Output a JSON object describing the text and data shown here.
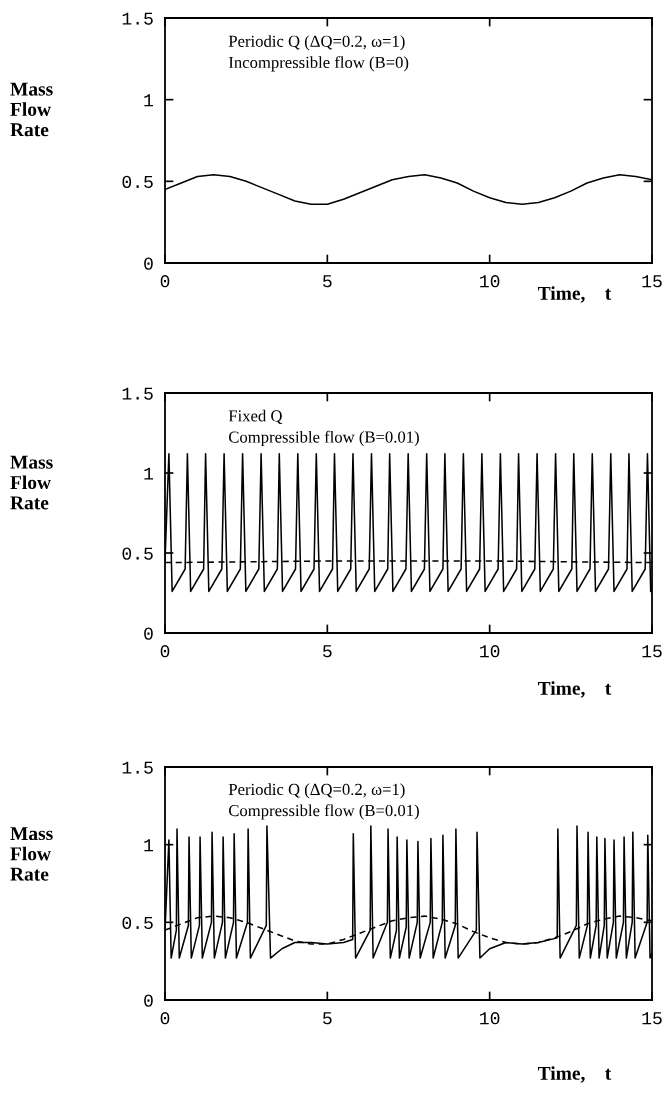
{
  "chart_data": [
    {
      "type": "line",
      "xlabel": "Time,    t",
      "ylabel": "Mass\nFlow\nRate",
      "annotations": [
        "Periodic Q (ΔQ=0.2, ω=1)\nIncompressible flow (B=0)"
      ],
      "xlim": [
        0,
        15
      ],
      "ylim": [
        0,
        1.5
      ],
      "xticks": [
        0,
        5,
        10,
        15
      ],
      "yticks": [
        0,
        0.5,
        1,
        1.5
      ],
      "grid": false,
      "series": [
        {
          "color": "#000000",
          "line_style": "solid",
          "x": [
            0,
            0.5,
            1,
            1.5,
            2,
            2.5,
            3,
            3.5,
            4,
            4.5,
            5,
            5.5,
            6,
            6.5,
            7,
            7.5,
            8,
            8.5,
            9,
            9.5,
            10,
            10.5,
            11,
            11.5,
            12,
            12.5,
            13,
            13.5,
            14,
            14.5,
            15
          ],
          "values": [
            0.45,
            0.49,
            0.53,
            0.54,
            0.53,
            0.5,
            0.46,
            0.42,
            0.38,
            0.36,
            0.36,
            0.39,
            0.43,
            0.47,
            0.51,
            0.53,
            0.54,
            0.52,
            0.49,
            0.44,
            0.4,
            0.37,
            0.36,
            0.37,
            0.4,
            0.44,
            0.49,
            0.52,
            0.54,
            0.53,
            0.51
          ]
        }
      ]
    },
    {
      "type": "line",
      "xlabel": "Time,    t",
      "ylabel": "Mass\nFlow\nRate",
      "annotations": [
        "Fixed Q\nCompressible flow (B=0.01)"
      ],
      "xlim": [
        0,
        15
      ],
      "ylim": [
        0,
        1.5
      ],
      "xticks": [
        0,
        5,
        10,
        15
      ],
      "yticks": [
        0,
        0.5,
        1,
        1.5
      ],
      "grid": false,
      "series": [
        {
          "color": "#000000",
          "line_style": "solid",
          "x": [
            0,
            0.12,
            0.22,
            0.62,
            0.69,
            0.79,
            1.19,
            1.25,
            1.35,
            1.75,
            1.82,
            1.92,
            2.32,
            2.39,
            2.49,
            2.89,
            2.96,
            3.06,
            3.46,
            3.52,
            3.62,
            4.02,
            4.09,
            4.19,
            4.59,
            4.66,
            4.76,
            5.16,
            5.22,
            5.32,
            5.72,
            5.79,
            5.89,
            6.29,
            6.36,
            6.46,
            6.86,
            6.92,
            7.02,
            7.42,
            7.49,
            7.59,
            7.99,
            8.06,
            8.16,
            8.56,
            8.62,
            8.72,
            9.12,
            9.19,
            9.29,
            9.69,
            9.76,
            9.86,
            10.26,
            10.33,
            10.43,
            10.83,
            10.89,
            10.99,
            11.39,
            11.46,
            11.56,
            11.96,
            12.03,
            12.13,
            12.53,
            12.59,
            12.69,
            13.09,
            13.16,
            13.26,
            13.66,
            13.73,
            13.83,
            14.23,
            14.29,
            14.39,
            14.79,
            14.86,
            14.96,
            15
          ],
          "values": [
            0.45,
            1.12,
            0.26,
            0.4,
            1.12,
            0.26,
            0.4,
            1.12,
            0.26,
            0.4,
            1.12,
            0.26,
            0.4,
            1.12,
            0.26,
            0.4,
            1.12,
            0.26,
            0.4,
            1.12,
            0.26,
            0.4,
            1.12,
            0.26,
            0.4,
            1.12,
            0.26,
            0.4,
            1.12,
            0.26,
            0.4,
            1.12,
            0.26,
            0.4,
            1.12,
            0.26,
            0.4,
            1.12,
            0.26,
            0.4,
            1.12,
            0.26,
            0.4,
            1.12,
            0.26,
            0.4,
            1.12,
            0.26,
            0.4,
            1.12,
            0.26,
            0.4,
            1.12,
            0.26,
            0.4,
            1.12,
            0.26,
            0.4,
            1.12,
            0.26,
            0.4,
            1.12,
            0.26,
            0.4,
            1.12,
            0.26,
            0.4,
            1.12,
            0.26,
            0.4,
            1.12,
            0.26,
            0.4,
            1.12,
            0.26,
            0.4,
            1.12,
            0.26,
            0.4,
            1.12,
            0.26,
            0.3
          ]
        },
        {
          "color": "#000000",
          "line_style": "dashed",
          "x": [
            0,
            5,
            10,
            15
          ],
          "values": [
            0.44,
            0.45,
            0.45,
            0.44
          ]
        }
      ]
    },
    {
      "type": "line",
      "xlabel": "Time,    t",
      "ylabel": "Mass\nFlow\nRate",
      "annotations": [
        "Periodic Q (ΔQ=0.2, ω=1)\nCompressible flow (B=0.01)"
      ],
      "xlim": [
        0,
        15
      ],
      "ylim": [
        0,
        1.5
      ],
      "xticks": [
        0,
        5,
        10,
        15
      ],
      "yticks": [
        0,
        0.5,
        1,
        1.5
      ],
      "grid": false,
      "series": [
        {
          "color": "#000000",
          "line_style": "solid",
          "x": [
            0,
            0.12,
            0.19,
            0.35,
            0.37,
            0.44,
            0.72,
            0.74,
            0.81,
            1.06,
            1.08,
            1.15,
            1.43,
            1.45,
            1.52,
            1.77,
            1.79,
            1.86,
            2.11,
            2.13,
            2.2,
            2.54,
            2.56,
            2.63,
            3.12,
            3.14,
            3.25,
            3.6,
            4.0,
            4.5,
            5.0,
            5.5,
            5.78,
            5.8,
            5.87,
            6.32,
            6.34,
            6.41,
            6.85,
            6.87,
            6.94,
            7.13,
            7.15,
            7.22,
            7.43,
            7.45,
            7.52,
            7.77,
            7.79,
            7.86,
            8.17,
            8.19,
            8.26,
            8.54,
            8.56,
            8.63,
            8.94,
            8.96,
            9.03,
            9.59,
            9.61,
            9.7,
            10.0,
            10.5,
            11.0,
            11.5,
            12.08,
            12.1,
            12.17,
            12.67,
            12.69,
            12.76,
            13.01,
            13.03,
            13.1,
            13.28,
            13.3,
            13.37,
            13.53,
            13.55,
            13.62,
            13.81,
            13.83,
            13.9,
            14.12,
            14.14,
            14.21,
            14.39,
            14.41,
            14.48,
            14.85,
            14.87,
            14.94,
            15
          ],
          "values": [
            0.45,
            1.03,
            0.27,
            0.45,
            1.1,
            0.27,
            0.48,
            1.05,
            0.27,
            0.48,
            1.05,
            0.27,
            0.5,
            1.08,
            0.27,
            0.5,
            1.05,
            0.27,
            0.5,
            1.07,
            0.27,
            0.5,
            1.1,
            0.27,
            0.48,
            1.12,
            0.27,
            0.33,
            0.37,
            0.37,
            0.36,
            0.37,
            0.39,
            1.07,
            0.27,
            0.45,
            1.12,
            0.27,
            0.5,
            1.1,
            0.27,
            0.45,
            1.05,
            0.27,
            0.47,
            1.03,
            0.27,
            0.5,
            1.02,
            0.27,
            0.5,
            1.04,
            0.27,
            0.5,
            1.06,
            0.27,
            0.48,
            1.1,
            0.27,
            0.45,
            1.08,
            0.27,
            0.33,
            0.37,
            0.36,
            0.37,
            0.4,
            1.1,
            0.27,
            0.48,
            1.12,
            0.27,
            0.48,
            1.08,
            0.27,
            0.48,
            1.05,
            0.27,
            0.48,
            1.04,
            0.27,
            0.5,
            1.03,
            0.27,
            0.5,
            1.05,
            0.27,
            0.5,
            1.08,
            0.27,
            0.5,
            1.06,
            0.27,
            0.3
          ]
        },
        {
          "color": "#000000",
          "line_style": "dashed",
          "x": [
            0,
            0.5,
            1,
            1.5,
            2,
            2.5,
            3,
            3.5,
            4,
            4.5,
            5,
            5.5,
            6,
            6.5,
            7,
            7.5,
            8,
            8.5,
            9,
            9.5,
            10,
            10.5,
            11,
            11.5,
            12,
            12.5,
            13,
            13.5,
            14,
            14.5,
            15
          ],
          "values": [
            0.45,
            0.49,
            0.53,
            0.54,
            0.53,
            0.5,
            0.46,
            0.42,
            0.38,
            0.36,
            0.36,
            0.39,
            0.43,
            0.47,
            0.51,
            0.53,
            0.54,
            0.52,
            0.49,
            0.44,
            0.4,
            0.37,
            0.36,
            0.37,
            0.4,
            0.44,
            0.49,
            0.52,
            0.54,
            0.53,
            0.51
          ]
        }
      ]
    }
  ]
}
